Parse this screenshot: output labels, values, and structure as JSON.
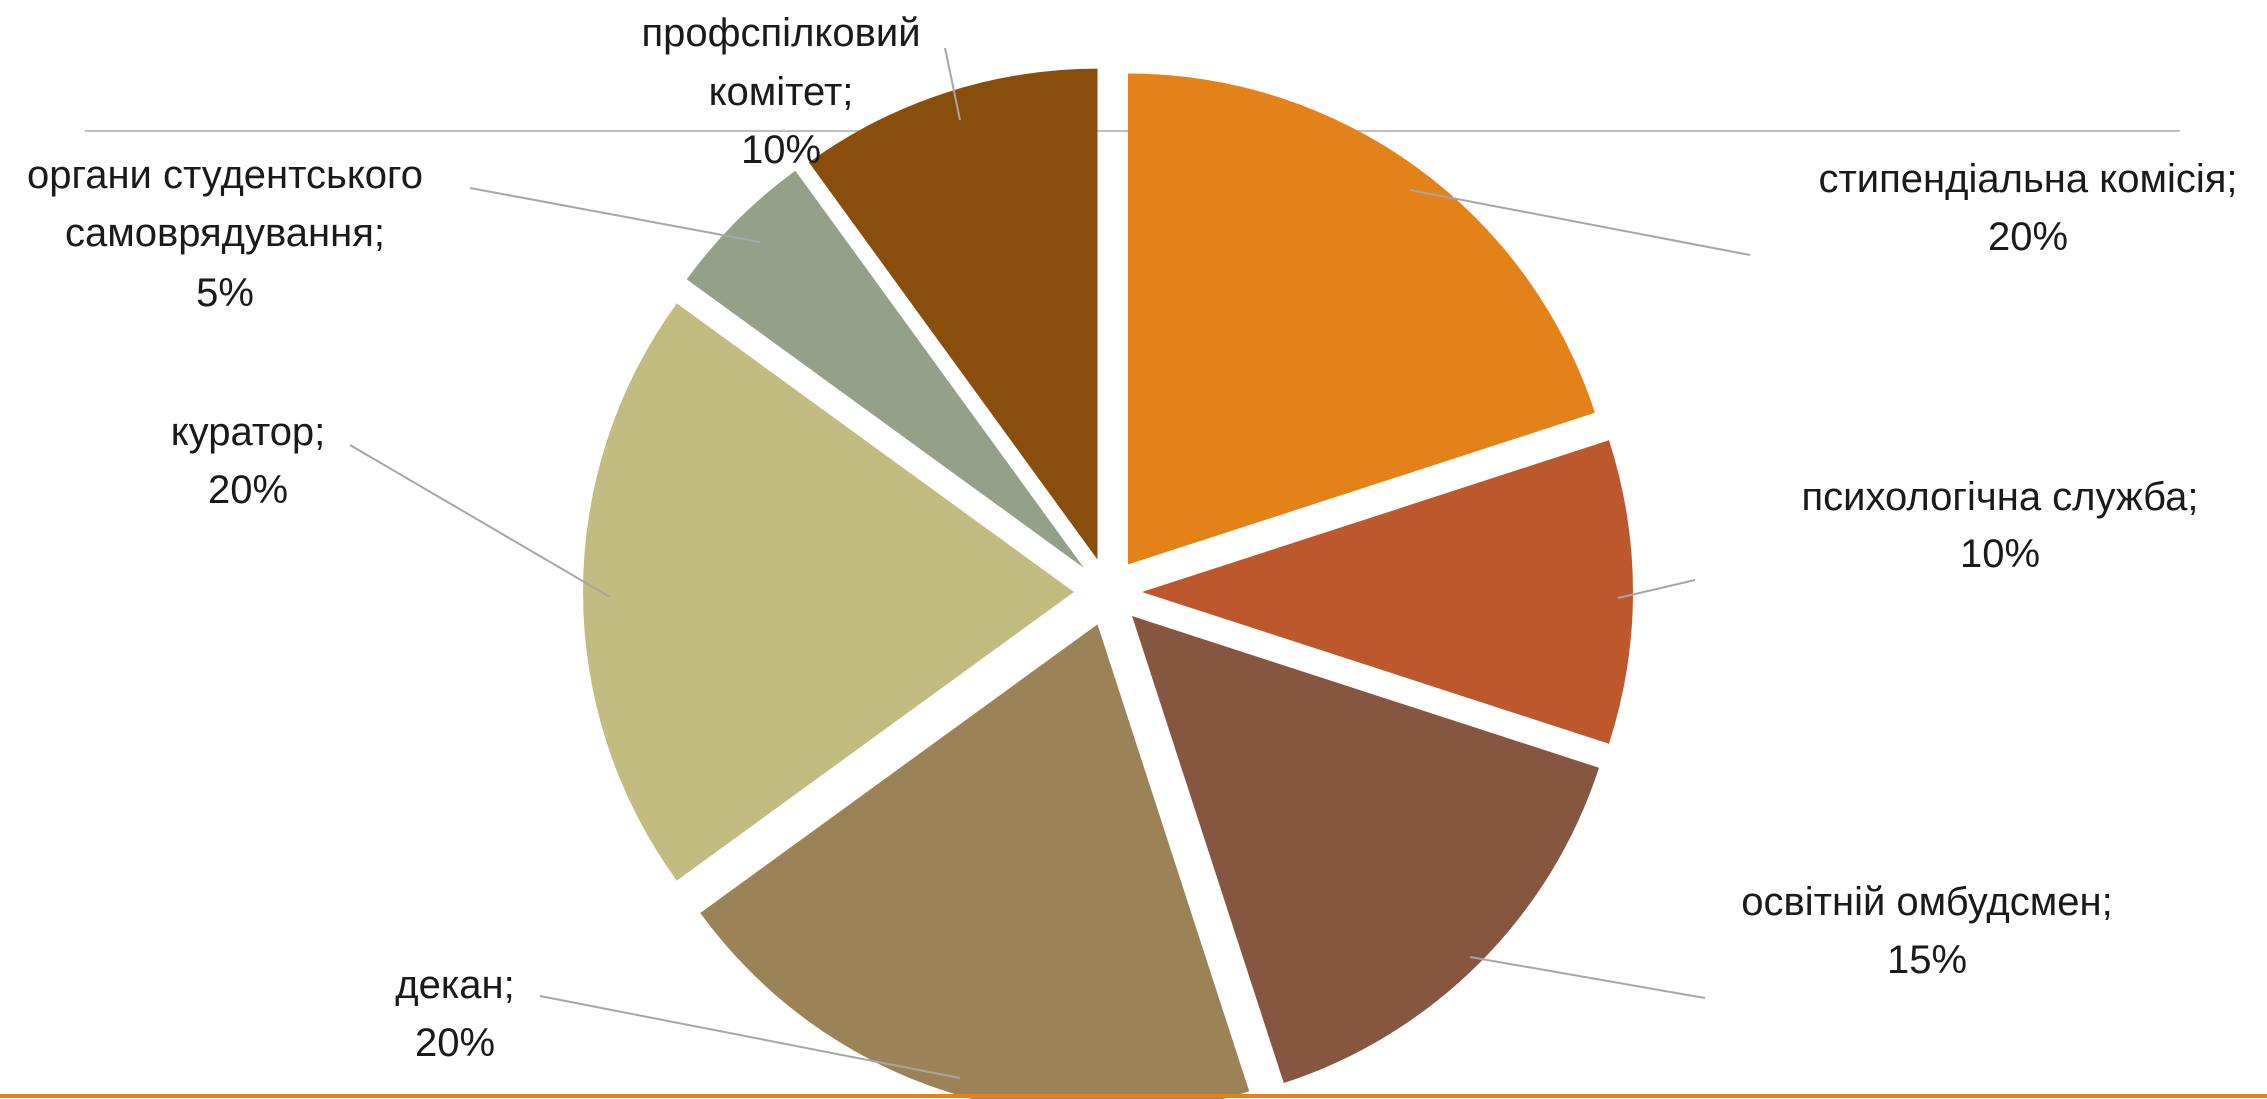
{
  "chart_data": {
    "type": "pie",
    "title": "",
    "start_angle_deg": 0,
    "direction": "clockwise",
    "exploded": true,
    "slices": [
      {
        "label": "стипендіальна комісія;",
        "value": 20,
        "percent_label": "20%",
        "color": "#E4821A"
      },
      {
        "label": "психологічна служба;",
        "value": 10,
        "percent_label": "10%",
        "color": "#BD582C"
      },
      {
        "label": "освітній омбудсмен;",
        "value": 15,
        "percent_label": "15%",
        "color": "#865640"
      },
      {
        "label": "декан;",
        "value": 20,
        "percent_label": "20%",
        "color": "#9B8357"
      },
      {
        "label": "куратор;",
        "value": 20,
        "percent_label": "20%",
        "color": "#C2BC80"
      },
      {
        "label": "органи студентського самоврядування;",
        "value": 5,
        "percent_label": "5%",
        "color": "#94A088"
      },
      {
        "label": "профспілковий комітет;",
        "value": 10,
        "percent_label": "10%",
        "color": "#8A4E0C"
      }
    ]
  },
  "theme": {
    "accent_rule_color": "#E4821A",
    "top_rule_color": "#bfbfbf",
    "leader_color": "#a6a6a6",
    "text_color": "#1a1a1a"
  }
}
